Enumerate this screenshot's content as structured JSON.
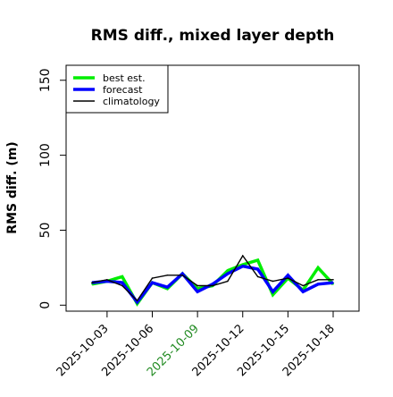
{
  "chart_data": {
    "type": "line",
    "title": "RMS diff., mixed layer depth",
    "xlabel": "",
    "ylabel": "RMS diff. (m)",
    "x": [
      "2025-10-02",
      "2025-10-03",
      "2025-10-04",
      "2025-10-05",
      "2025-10-06",
      "2025-10-07",
      "2025-10-08",
      "2025-10-09",
      "2025-10-10",
      "2025-10-11",
      "2025-10-12",
      "2025-10-13",
      "2025-10-14",
      "2025-10-15",
      "2025-10-16",
      "2025-10-17",
      "2025-10-18"
    ],
    "xticks": [
      "2025-10-03",
      "2025-10-06",
      "2025-10-09",
      "2025-10-12",
      "2025-10-15",
      "2025-10-18"
    ],
    "highlight_tick": "2025-10-09",
    "highlight_color": "#228b22",
    "ylim": [
      -4,
      160
    ],
    "yticks": [
      0,
      50,
      100,
      150
    ],
    "grid": false,
    "legend_position": "top-left",
    "series": [
      {
        "name": "best est.",
        "color": "#00ee00",
        "values": [
          14,
          16,
          19,
          1,
          15,
          11,
          21,
          11,
          13,
          23,
          27,
          30,
          7,
          18,
          10,
          25,
          14
        ]
      },
      {
        "name": "forecast",
        "color": "#0000ff",
        "values": [
          15,
          16,
          15,
          2,
          15,
          12,
          21,
          9,
          14,
          21,
          26,
          24,
          9,
          20,
          9,
          14,
          15
        ]
      },
      {
        "name": "climatology",
        "color": "#000000",
        "values": [
          15,
          17,
          13,
          3,
          18,
          20,
          20,
          13,
          13,
          16,
          33,
          19,
          16,
          18,
          13,
          17,
          17
        ]
      }
    ]
  }
}
